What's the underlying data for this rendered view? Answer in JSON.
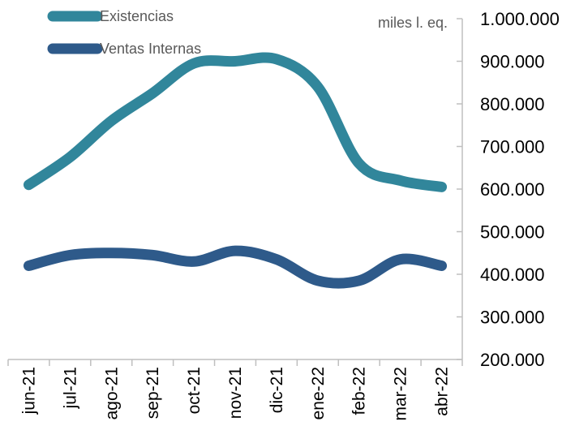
{
  "chart_data": {
    "type": "line",
    "categories": [
      "jun-21",
      "jul-21",
      "ago-21",
      "sep-21",
      "oct-21",
      "nov-21",
      "dic-21",
      "ene-22",
      "feb-22",
      "mar-22",
      "abr-22"
    ],
    "series": [
      {
        "name": "Existencias",
        "color": "#31869B",
        "values": [
          610000,
          675000,
          760000,
          825000,
          895000,
          900000,
          905000,
          840000,
          660000,
          620000,
          605000
        ]
      },
      {
        "name": "Ventas Internas",
        "color": "#2E5A8A",
        "values": [
          420000,
          445000,
          450000,
          445000,
          430000,
          455000,
          435000,
          385000,
          385000,
          435000,
          420000
        ]
      }
    ],
    "y_ticks": [
      "200.000",
      "300.000",
      "400.000",
      "500.000",
      "600.000",
      "700.000",
      "800.000",
      "900.000",
      "1.000.000"
    ],
    "unit_label": "miles l. eq.",
    "ylim": [
      200000,
      1000000
    ],
    "y_axis_position": "right",
    "legend_position": "top-left",
    "grid": false
  }
}
